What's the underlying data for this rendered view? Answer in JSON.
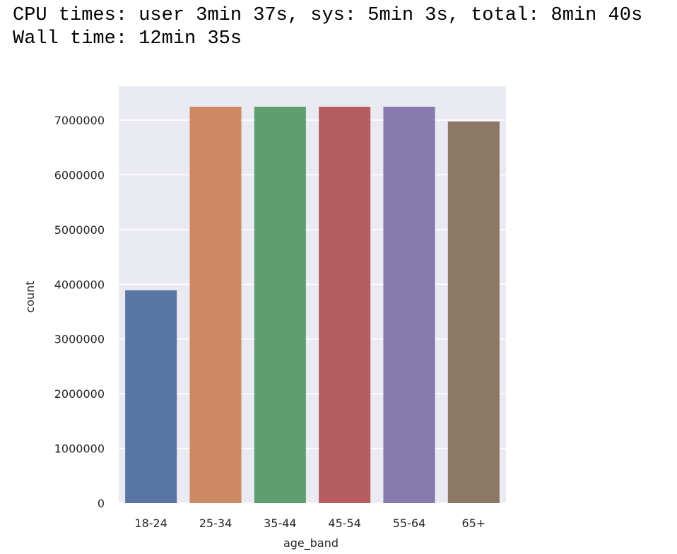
{
  "output_lines": [
    "CPU times: user 3min 37s, sys: 5min 3s, total: 8min 40s",
    "Wall time: 12min 35s"
  ],
  "chart_data": {
    "type": "bar",
    "xlabel": "age_band",
    "ylabel": "count",
    "categories": [
      "18-24",
      "25-34",
      "35-44",
      "45-54",
      "55-64",
      "65+"
    ],
    "values": [
      3890000,
      7245000,
      7245000,
      7245000,
      7245000,
      6975000
    ],
    "colors": [
      "#5975a4",
      "#cc8963",
      "#5f9e6e",
      "#b55d60",
      "#857aab",
      "#8d7866"
    ],
    "ylim": [
      0,
      7620000
    ],
    "yticks": [
      0,
      1000000,
      2000000,
      3000000,
      4000000,
      5000000,
      6000000,
      7000000
    ],
    "grid": true
  }
}
